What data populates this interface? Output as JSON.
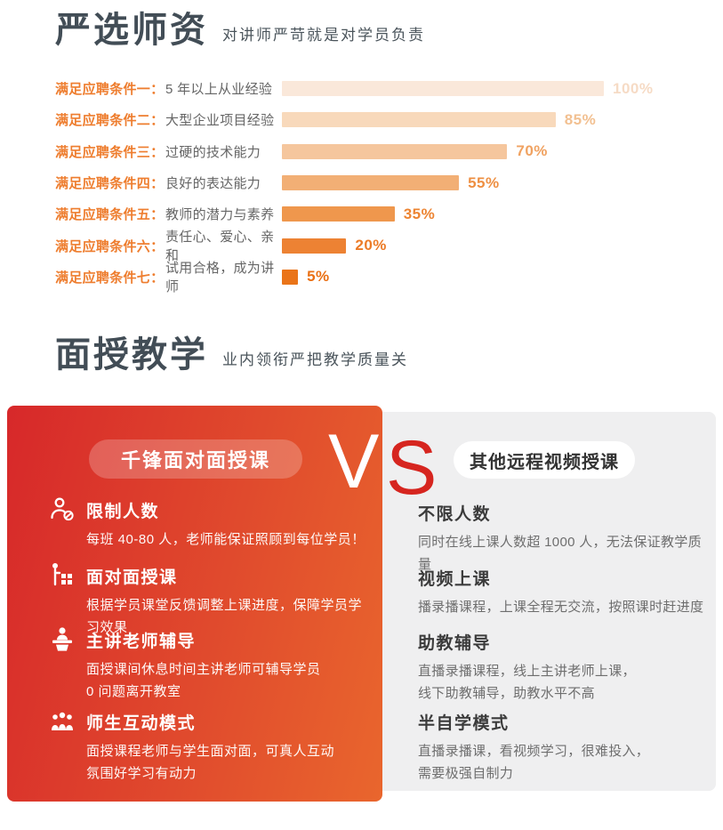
{
  "colors": {
    "accent": "#ee7d2e",
    "title": "#424d56",
    "title-sub": "#4a545b",
    "vs-red": "#d6251f",
    "panel-gray": "#efeff0",
    "panel-red-start": "#d7282a",
    "panel-red-end": "#e9662d"
  },
  "section1": {
    "title": "严选师资",
    "subtitle": "对讲师严苛就是对学员负责",
    "chart_data": {
      "type": "bar",
      "orientation": "horizontal",
      "title": "严选师资",
      "subtitle": "对讲师严苛就是对学员负责",
      "categories": [
        "满足应聘条件一：",
        "满足应聘条件二：",
        "满足应聘条件三：",
        "满足应聘条件四：",
        "满足应聘条件五：",
        "满足应聘条件六：",
        "满足应聘条件七："
      ],
      "category_descriptions": [
        "5 年以上从业经验",
        "大型企业项目经验",
        "过硬的技术能力",
        "良好的表达能力",
        "教师的潜力与素养",
        "责任心、爱心、亲和",
        "试用合格，成为讲师"
      ],
      "values": [
        100,
        85,
        70,
        55,
        35,
        20,
        5
      ],
      "unit": "%",
      "max": 100,
      "xlim": [
        0,
        100
      ],
      "grid": false,
      "legend": false,
      "bar_colors": [
        "#fae8da",
        "#f8d9bb",
        "#f5c69d",
        "#f2af75",
        "#ef974d",
        "#ed8233",
        "#ea7419"
      ],
      "value_label_colors": [
        "#f6dbc5",
        "#f2c091",
        "#f0a261",
        "#ee8f42",
        "#ed8432",
        "#ec7b27",
        "#ea7014"
      ]
    }
  },
  "section2": {
    "title": "面授教学",
    "subtitle": "业内领衔严把教学质量关",
    "vs": {
      "left_letter": "V",
      "right_letter": "S"
    },
    "left": {
      "badge": "千锋面对面授课",
      "items": [
        {
          "icon": "limited-people-icon",
          "title": "限制人数",
          "desc": [
            "每班 40-80 人，老师能保证照顾到每位学员！"
          ]
        },
        {
          "icon": "face-to-face-teaching-icon",
          "title": "面对面授课",
          "desc": [
            "根据学员课堂反馈调整上课进度，保障学员学习效果"
          ]
        },
        {
          "icon": "lecturer-podium-icon",
          "title": "主讲老师辅导",
          "desc": [
            "面授课间休息时间主讲老师可辅导学员",
            "0 问题离开教室"
          ]
        },
        {
          "icon": "group-interaction-icon",
          "title": "师生互动模式",
          "desc": [
            "面授课程老师与学生面对面，可真人互动",
            "氛围好学习有动力"
          ]
        }
      ]
    },
    "right": {
      "badge": "其他远程视频授课",
      "items": [
        {
          "title": "不限人数",
          "desc": [
            "同时在线上课人数超 1000 人，无法保证教学质量"
          ]
        },
        {
          "title": "视频上课",
          "desc": [
            "播录播课程，上课全程无交流，按照课时赶进度"
          ]
        },
        {
          "title": "助教辅导",
          "desc": [
            "直播录播课程，线上主讲老师上课，",
            "线下助教辅导，助教水平不高"
          ]
        },
        {
          "title": "半自学模式",
          "desc": [
            "直播录播课，看视频学习，很难投入，",
            "需要极强自制力"
          ]
        }
      ]
    }
  }
}
